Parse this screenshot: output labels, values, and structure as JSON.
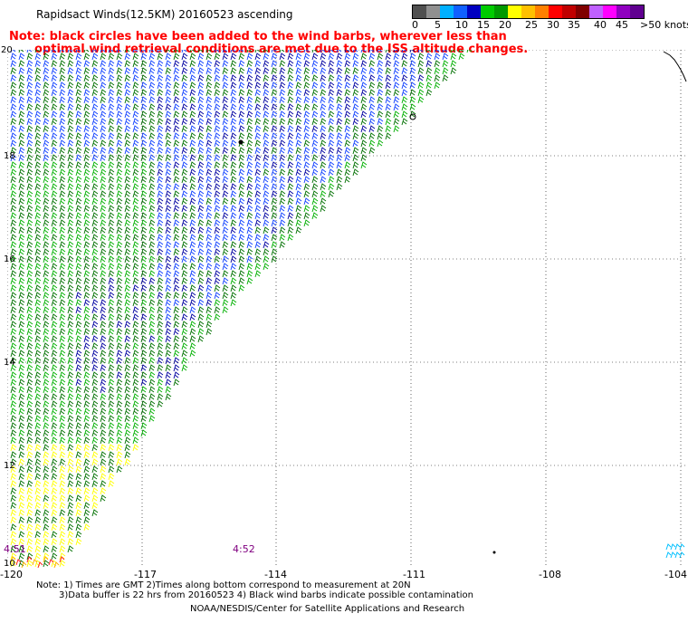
{
  "title": "Rapidsact Winds(12.5KM) 20160523 ascending",
  "note": {
    "line1": "Note: black circles have been added to the wind barbs, wherever less than",
    "line2": "optimal wind retrieval conditions are met due to the ISS altitude changes."
  },
  "legend": {
    "unit": "knots",
    "colors": [
      "#505050",
      "#909090",
      "#00b0ff",
      "#1060ff",
      "#0000c0",
      "#00cc00",
      "#009900",
      "#ffff00",
      "#ffc000",
      "#ff8000",
      "#ff0000",
      "#c00000",
      "#800000",
      "#c060ff",
      "#ff00ff",
      "#9000c0",
      "#600090"
    ],
    "labels": [
      "0",
      "5",
      "10",
      "15",
      "20",
      "25",
      "30",
      "35",
      "40",
      "45",
      ">50 knots"
    ]
  },
  "map": {
    "lat_labels": [
      "20",
      "18",
      "16",
      "14",
      "12",
      "10"
    ],
    "lon_labels": [
      "-120",
      "-117",
      "-114",
      "-111",
      "-108",
      "-104"
    ],
    "time_labels": [
      "4:51",
      "4:52"
    ],
    "barb_colors": {
      "green": "#00b000",
      "dark_green": "#007000",
      "blue": "#1040ff",
      "navy": "#0000a0",
      "yellow": "#ffff00",
      "orange": "#ffb000",
      "red": "#ff2020",
      "cyan": "#00c0ff",
      "black": "#000000"
    }
  },
  "footnote": {
    "line1": "Note: 1) Times are GMT 2)Times along bottom correspond to measurement at 20N",
    "line2": "3)Data buffer is 22 hrs from 20160523 4) Black wind barbs indicate possible contamination"
  },
  "credit": "NOAA/NESDIS/Center for Satellite Applications and Research"
}
